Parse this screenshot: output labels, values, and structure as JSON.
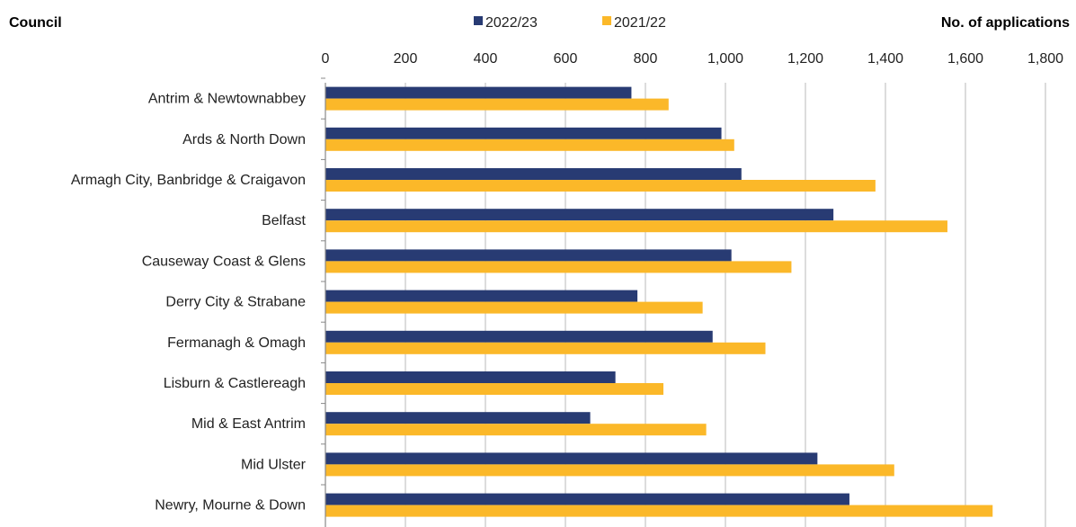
{
  "chart_data": {
    "type": "bar",
    "orientation": "horizontal",
    "y_header": "Council",
    "x_header": "No. of applications",
    "categories": [
      "Antrim & Newtownabbey",
      "Ards & North Down",
      "Armagh City, Banbridge & Craigavon",
      "Belfast",
      "Causeway Coast & Glens",
      "Derry City & Strabane",
      "Fermanagh & Omagh",
      "Lisburn & Castlereagh",
      "Mid & East Antrim",
      "Mid Ulster",
      "Newry, Mourne & Down"
    ],
    "series": [
      {
        "name": "2022/23",
        "color": "#283b73",
        "values": [
          765,
          990,
          1040,
          1270,
          1015,
          780,
          968,
          725,
          662,
          1230,
          1310
        ]
      },
      {
        "name": "2021/22",
        "color": "#fbb829",
        "values": [
          858,
          1022,
          1375,
          1555,
          1165,
          943,
          1100,
          845,
          952,
          1422,
          1668
        ]
      }
    ],
    "xlim": [
      0,
      1800
    ],
    "xticks": [
      0,
      200,
      400,
      600,
      800,
      1000,
      1200,
      1400,
      1600,
      1800
    ],
    "xtick_labels": [
      "0",
      "200",
      "400",
      "600",
      "800",
      "1,000",
      "1,200",
      "1,400",
      "1,600",
      "1,800"
    ],
    "grid": true,
    "legend": "top-center",
    "axis_position": "top"
  }
}
